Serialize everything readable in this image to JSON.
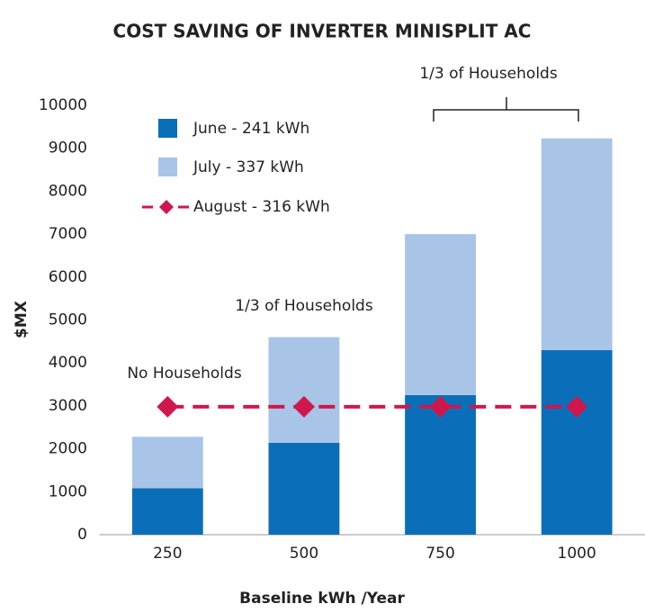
{
  "chart_data": {
    "type": "bar",
    "title": "COST SAVING OF INVERTER MINISPLIT AC",
    "x_label": "Baseline kWh /Year",
    "y_label": "$MX",
    "categories": [
      "250",
      "500",
      "750",
      "1000"
    ],
    "series": [
      {
        "name": "June - 241 kWh",
        "color": "#0a6fb8",
        "values": [
          1080,
          2140,
          3250,
          4300
        ]
      },
      {
        "name": "July - 337 kWh",
        "color": "#a8c4e6",
        "values": [
          1200,
          2460,
          3750,
          4930
        ]
      },
      {
        "name": "August - 316 kWh",
        "color": "#d0174d",
        "type": "line",
        "values": [
          2980,
          2980,
          2980,
          2980
        ]
      }
    ],
    "stacked": true,
    "ylim": [
      0,
      10000
    ],
    "yticks": [
      0,
      1000,
      2000,
      3000,
      4000,
      5000,
      6000,
      7000,
      8000,
      9000,
      10000
    ],
    "grid": false,
    "legend": "upper left",
    "annotations": [
      "No Households",
      "1/3 of Households",
      "1/3 of Households"
    ]
  }
}
